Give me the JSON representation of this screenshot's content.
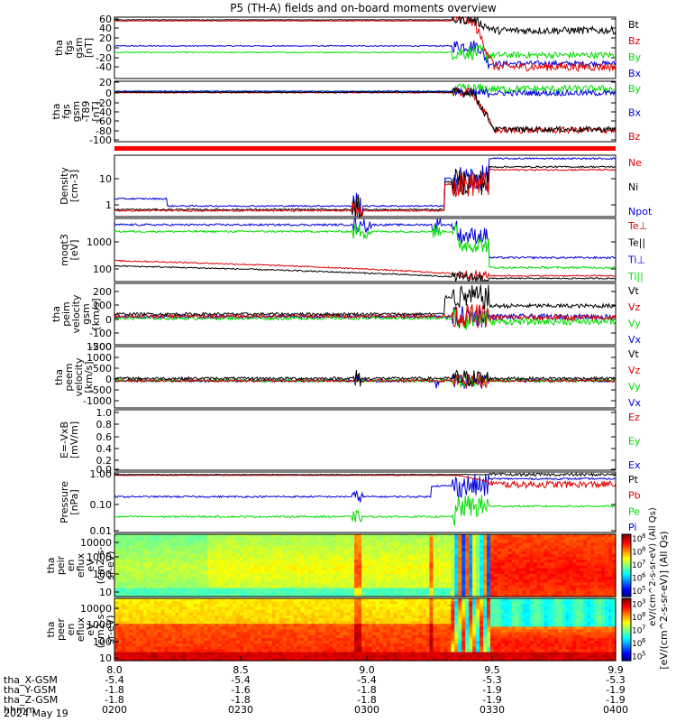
{
  "title": "P5 (TH-A) fields and on-board moments overview",
  "colors": {
    "black": "#000000",
    "red": "#e00000",
    "green": "#00dd00",
    "blue": "#0000dd",
    "bar_red": "#ff0000"
  },
  "panels": [
    {
      "ylabel": [
        "tha",
        "fgs",
        "gsm",
        "[nT]"
      ],
      "yticks": [
        "60",
        "40",
        "20",
        "0",
        "-20",
        "-40"
      ],
      "legend": [
        {
          "label": "Bt",
          "color": "#000000"
        },
        {
          "label": "Bz",
          "color": "#e00000"
        },
        {
          "label": "By",
          "color": "#00dd00"
        },
        {
          "label": "Bx",
          "color": "#0000dd"
        }
      ]
    },
    {
      "ylabel": [
        "tha",
        "fgs",
        "gsm",
        "-T89",
        "[nT]"
      ],
      "yticks": [
        "20",
        "0",
        "-20",
        "-40",
        "-60",
        "-80",
        "-100"
      ],
      "legend": [
        {
          "label": "By",
          "color": "#00dd00"
        },
        {
          "label": "Bx",
          "color": "#0000dd"
        },
        {
          "label": "Bz",
          "color": "#e00000"
        }
      ]
    },
    {
      "ylabel": [
        "Density",
        "[cm-3]"
      ],
      "yticks": [
        "10",
        "1"
      ],
      "legend": [
        {
          "label": "Ne",
          "color": "#e00000"
        },
        {
          "label": "Ni",
          "color": "#000000"
        },
        {
          "label": "Npot",
          "color": "#0000dd"
        }
      ]
    },
    {
      "ylabel": [
        "moqt3",
        "[eV]"
      ],
      "yticks": [
        "1000",
        "100"
      ],
      "legend": [
        {
          "label": "Te⊥",
          "color": "#e00000"
        },
        {
          "label": "Te||",
          "color": "#000000"
        },
        {
          "label": "Ti⊥",
          "color": "#0000dd"
        },
        {
          "label": "Ti||",
          "color": "#00dd00"
        }
      ]
    },
    {
      "ylabel": [
        "tha",
        "peim",
        "velocity",
        "gsm",
        "[km/s]"
      ],
      "yticks": [
        "200",
        "100",
        "0",
        "-100",
        "-200"
      ],
      "legend": [
        {
          "label": "Vt",
          "color": "#000000"
        },
        {
          "label": "Vz",
          "color": "#e00000"
        },
        {
          "label": "Vy",
          "color": "#00dd00"
        },
        {
          "label": "Vx",
          "color": "#0000dd"
        }
      ]
    },
    {
      "ylabel": [
        "tha",
        "peem",
        "velocity",
        "[km/s]"
      ],
      "yticks": [
        "1500",
        "1000",
        "500",
        "0",
        "-500",
        "-1000"
      ],
      "legend": [
        {
          "label": "Vt",
          "color": "#000000"
        },
        {
          "label": "Vz",
          "color": "#e00000"
        },
        {
          "label": "Vy",
          "color": "#00dd00"
        },
        {
          "label": "Vx",
          "color": "#0000dd"
        }
      ]
    },
    {
      "ylabel": [
        "E=-VxB",
        "[mV/m]"
      ],
      "yticks": [
        "1.0",
        "0.8",
        "0.6",
        "0.4",
        "0.2",
        "0.0"
      ],
      "legend": [
        {
          "label": "Ez",
          "color": "#e00000"
        },
        {
          "label": "Ey",
          "color": "#00dd00"
        },
        {
          "label": "Ex",
          "color": "#0000dd"
        }
      ]
    },
    {
      "ylabel": [
        "Pressure",
        "[nPa]"
      ],
      "yticks": [
        "1.00",
        "0.10",
        "0.01"
      ],
      "legend": [
        {
          "label": "Pt",
          "color": "#000000"
        },
        {
          "label": "Pb",
          "color": "#e00000"
        },
        {
          "label": "Pe",
          "color": "#00dd00"
        },
        {
          "label": "Pi",
          "color": "#0000dd"
        }
      ]
    },
    {
      "ylabel": [
        "tha",
        "peir",
        "en",
        "eflux",
        "eV",
        "(cm2-s-",
        "sr-eV)"
      ],
      "yticks": [
        "10000",
        "1000",
        "100",
        "10"
      ],
      "legend": []
    },
    {
      "ylabel": [
        "tha",
        "peer",
        "en",
        "eflux",
        "eV",
        "(cm2-s-",
        "sr-eV)"
      ],
      "yticks": [
        "10000",
        "1000",
        "100",
        "10"
      ],
      "legend": []
    }
  ],
  "colorbar": {
    "ticks": [
      "10",
      "10",
      "10",
      "10",
      "10",
      "10",
      "10",
      "10",
      "10",
      "10"
    ],
    "exponents": [
      "8",
      "8",
      "7",
      "6",
      "5",
      "3",
      "8",
      "7",
      "6",
      "5"
    ],
    "label": "[eV/(cm^2-s-sr-eV)] (All Qs)",
    "stacked_label": "eV/(cm^2-s-sr-eV) (All Qs)"
  },
  "xaxis": {
    "ticks": [
      "8.0",
      "8.5",
      "9.0",
      "9.5",
      "9.9"
    ],
    "rows": [
      {
        "label": "tha_X-GSM",
        "values": [
          "-5.4",
          "-5.4",
          "-5.4",
          "-5.3",
          "-5.3"
        ]
      },
      {
        "label": "tha_Y-GSM",
        "values": [
          "-1.8",
          "-1.6",
          "-1.8",
          "-1.9",
          "-1.9"
        ]
      },
      {
        "label": "tha_Z-GSM",
        "values": [
          "-1.8",
          "-1.8",
          "-1.8",
          "-1.9",
          "-1.9"
        ]
      },
      {
        "label": "hhmm",
        "values": [
          "0200",
          "0230",
          "0300",
          "0330",
          "0400"
        ]
      }
    ],
    "date": "2024 May 19"
  },
  "chart_data": [
    {
      "type": "line",
      "title": "P5 (TH-A) fields and on-board moments overview",
      "ylabel": "tha fgs gsm [nT]",
      "ylim": [
        -50,
        65
      ],
      "x": [
        8.0,
        8.5,
        9.0,
        9.2,
        9.3,
        9.4,
        9.6,
        9.9
      ],
      "series": [
        {
          "name": "Bt",
          "values": [
            60,
            59,
            58,
            57,
            50,
            35,
            40,
            42
          ]
        },
        {
          "name": "Bz",
          "values": [
            59,
            58,
            57,
            55,
            40,
            -30,
            -30,
            -25
          ]
        },
        {
          "name": "By",
          "values": [
            0,
            0,
            -2,
            0,
            5,
            -10,
            -5,
            -8
          ]
        },
        {
          "name": "Bx",
          "values": [
            12,
            10,
            10,
            10,
            20,
            -20,
            -22,
            -25
          ]
        }
      ]
    },
    {
      "type": "line",
      "ylabel": "tha fgs gsm -T89 [nT]",
      "ylim": [
        -110,
        20
      ],
      "x": [
        8.0,
        8.5,
        9.0,
        9.2,
        9.3,
        9.4,
        9.6,
        9.9
      ],
      "series": [
        {
          "name": "By",
          "values": [
            0,
            0,
            0,
            0,
            5,
            0,
            0,
            0
          ]
        },
        {
          "name": "Bx",
          "values": [
            0,
            0,
            0,
            -2,
            -5,
            -5,
            -3,
            -3
          ]
        },
        {
          "name": "Bz",
          "values": [
            -2,
            -3,
            -3,
            -5,
            -20,
            -85,
            -85,
            -80
          ]
        }
      ]
    },
    {
      "type": "line",
      "ylabel": "Density [cm-3]",
      "yscale": "log",
      "ylim": [
        0.3,
        60
      ],
      "x": [
        8.0,
        8.5,
        8.9,
        9.2,
        9.3,
        9.4,
        9.6,
        9.9
      ],
      "series": [
        {
          "name": "Ne",
          "values": [
            0.5,
            0.5,
            0.5,
            0.6,
            5,
            15,
            18,
            18
          ]
        },
        {
          "name": "Ni",
          "values": [
            0.5,
            0.5,
            0.6,
            0.7,
            5,
            20,
            22,
            22
          ]
        },
        {
          "name": "Npot",
          "values": [
            1.5,
            0.8,
            0.7,
            0.8,
            10,
            40,
            45,
            45
          ]
        }
      ]
    },
    {
      "type": "line",
      "ylabel": "moqt3 [eV]",
      "yscale": "log",
      "ylim": [
        60,
        5000
      ],
      "x": [
        8.0,
        8.5,
        8.9,
        9.2,
        9.3,
        9.4,
        9.6,
        9.9
      ],
      "series": [
        {
          "name": "Te⊥",
          "values": [
            250,
            200,
            180,
            150,
            100,
            80,
            90,
            90
          ]
        },
        {
          "name": "Te||",
          "values": [
            180,
            150,
            130,
            110,
            90,
            70,
            75,
            75
          ]
        },
        {
          "name": "Ti⊥",
          "values": [
            3500,
            3000,
            3000,
            2800,
            1200,
            300,
            350,
            300
          ]
        },
        {
          "name": "Ti||",
          "values": [
            2200,
            2000,
            1800,
            1800,
            600,
            150,
            170,
            150
          ]
        }
      ]
    },
    {
      "type": "line",
      "ylabel": "tha peim velocity gsm [km/s]",
      "ylim": [
        -200,
        250
      ],
      "x": [
        8.0,
        8.5,
        9.0,
        9.2,
        9.3,
        9.4,
        9.6,
        9.9
      ],
      "series": [
        {
          "name": "Vt",
          "values": [
            20,
            20,
            25,
            60,
            150,
            100,
            80,
            80
          ]
        },
        {
          "name": "Vz",
          "values": [
            5,
            10,
            10,
            20,
            50,
            0,
            10,
            5
          ]
        },
        {
          "name": "Vy",
          "values": [
            0,
            -5,
            -10,
            -30,
            -80,
            -40,
            -30,
            -20
          ]
        },
        {
          "name": "Vx",
          "values": [
            5,
            0,
            5,
            10,
            30,
            -20,
            -10,
            -10
          ]
        }
      ]
    },
    {
      "type": "line",
      "ylabel": "tha peem velocity [km/s]",
      "ylim": [
        -1200,
        1500
      ],
      "x": [
        8.0,
        8.5,
        9.0,
        9.2,
        9.3,
        9.4,
        9.6,
        9.9
      ],
      "series": [
        {
          "name": "Vt",
          "values": [
            100,
            100,
            150,
            200,
            300,
            200,
            200,
            200
          ]
        },
        {
          "name": "Vz",
          "values": [
            0,
            0,
            0,
            50,
            100,
            0,
            0,
            0
          ]
        },
        {
          "name": "Vy",
          "values": [
            0,
            0,
            -50,
            -50,
            -100,
            0,
            0,
            0
          ]
        },
        {
          "name": "Vx",
          "values": [
            0,
            0,
            0,
            -50,
            -200,
            -50,
            0,
            0
          ]
        }
      ]
    },
    {
      "type": "line",
      "ylabel": "E=-VxB [mV/m]",
      "ylim": [
        0,
        1.0
      ],
      "series": [
        {
          "name": "Ez",
          "values": []
        },
        {
          "name": "Ey",
          "values": []
        },
        {
          "name": "Ex",
          "values": []
        }
      ]
    },
    {
      "type": "line",
      "ylabel": "Pressure [nPa]",
      "yscale": "log",
      "ylim": [
        0.01,
        1.2
      ],
      "x": [
        8.0,
        8.5,
        9.0,
        9.2,
        9.3,
        9.4,
        9.6,
        9.9
      ],
      "series": [
        {
          "name": "Pt",
          "values": [
            1.0,
            0.95,
            0.9,
            0.9,
            0.9,
            1.0,
            1.0,
            1.0
          ]
        },
        {
          "name": "Pb",
          "values": [
            0.95,
            0.9,
            0.9,
            0.8,
            0.7,
            0.4,
            0.4,
            0.4
          ]
        },
        {
          "name": "Pe",
          "values": [
            0.05,
            0.04,
            0.03,
            0.03,
            0.05,
            0.08,
            0.08,
            0.08
          ]
        },
        {
          "name": "Pi",
          "values": [
            0.2,
            0.18,
            0.15,
            0.2,
            0.5,
            0.8,
            0.8,
            0.8
          ]
        }
      ]
    },
    {
      "type": "heatmap",
      "ylabel": "tha peir en eflux eV (cm2-s-sr-eV)",
      "yscale": "log",
      "ylim": [
        5,
        20000
      ]
    },
    {
      "type": "heatmap",
      "ylabel": "tha peer en eflux eV (cm2-s-sr-eV)",
      "yscale": "log",
      "ylim": [
        5,
        20000
      ]
    }
  ]
}
